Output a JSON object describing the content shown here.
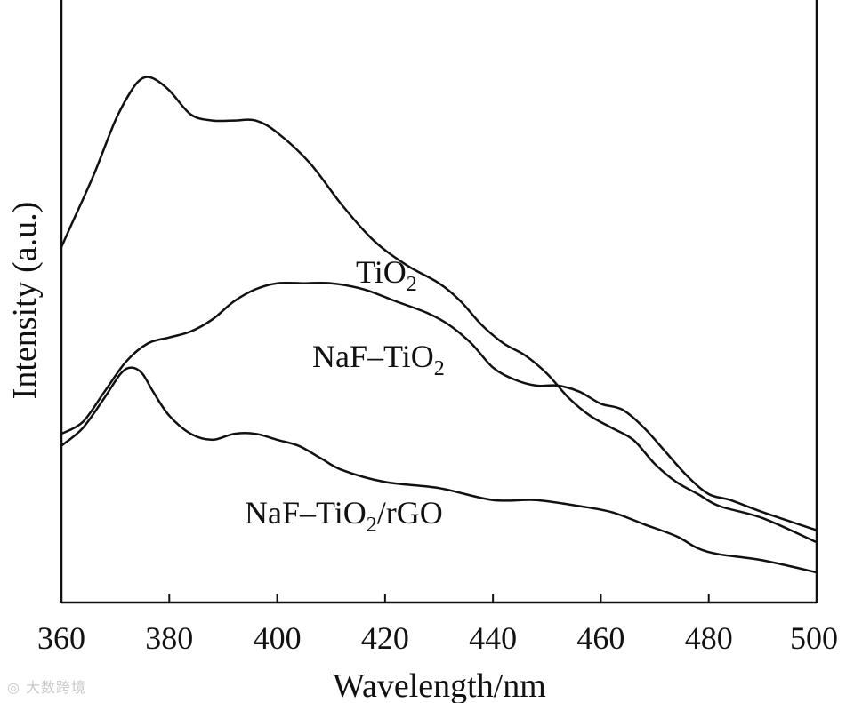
{
  "chart_data": {
    "type": "line",
    "title": "",
    "xlabel": "Wavelength/nm",
    "ylabel": "Intensity (a.u.)",
    "xlim": [
      360,
      500
    ],
    "ylim": [
      0,
      1
    ],
    "x_ticks": [
      "360",
      "380",
      "400",
      "420",
      "440",
      "460",
      "480",
      "500"
    ],
    "y_ticks": [],
    "series": [
      {
        "name": "TiO2",
        "label_main": "TiO",
        "label_sub": "2",
        "label_tail": "",
        "x": [
          360,
          362,
          366,
          370,
          373,
          375,
          377,
          380,
          384,
          388,
          392,
          396,
          400,
          406,
          412,
          418,
          424,
          430,
          434,
          438,
          442,
          446,
          450,
          454,
          458,
          462,
          466,
          470,
          474,
          478,
          482,
          490,
          500
        ],
        "y": [
          0.59,
          0.63,
          0.71,
          0.8,
          0.85,
          0.87,
          0.87,
          0.85,
          0.81,
          0.8,
          0.8,
          0.8,
          0.78,
          0.73,
          0.66,
          0.6,
          0.56,
          0.53,
          0.5,
          0.46,
          0.43,
          0.41,
          0.38,
          0.34,
          0.31,
          0.29,
          0.27,
          0.23,
          0.2,
          0.18,
          0.16,
          0.14,
          0.1
        ]
      },
      {
        "name": "NaF-TiO2",
        "label_main": "NaF–TiO",
        "label_sub": "2",
        "label_tail": "",
        "x": [
          360,
          364,
          368,
          372,
          376,
          380,
          384,
          388,
          392,
          396,
          400,
          405,
          410,
          416,
          422,
          428,
          432,
          436,
          440,
          444,
          448,
          452,
          456,
          460,
          464,
          468,
          472,
          476,
          480,
          484,
          490,
          500
        ],
        "y": [
          0.28,
          0.3,
          0.35,
          0.4,
          0.43,
          0.44,
          0.45,
          0.47,
          0.5,
          0.52,
          0.53,
          0.53,
          0.53,
          0.52,
          0.5,
          0.48,
          0.46,
          0.43,
          0.39,
          0.37,
          0.36,
          0.36,
          0.35,
          0.33,
          0.32,
          0.29,
          0.25,
          0.21,
          0.18,
          0.17,
          0.15,
          0.12
        ]
      },
      {
        "name": "NaF-TiO2/rGO",
        "label_main": "NaF–TiO",
        "label_sub": "2",
        "label_tail": "/rGO",
        "x": [
          360,
          364,
          368,
          371,
          373,
          375,
          377,
          380,
          384,
          388,
          392,
          396,
          400,
          404,
          408,
          412,
          420,
          430,
          440,
          448,
          456,
          462,
          468,
          474,
          478,
          482,
          490,
          500
        ],
        "y": [
          0.26,
          0.29,
          0.34,
          0.38,
          0.39,
          0.38,
          0.35,
          0.31,
          0.28,
          0.27,
          0.28,
          0.28,
          0.27,
          0.26,
          0.24,
          0.22,
          0.2,
          0.19,
          0.17,
          0.17,
          0.16,
          0.15,
          0.13,
          0.11,
          0.09,
          0.08,
          0.07,
          0.05
        ]
      }
    ],
    "annotations": [],
    "grid": false,
    "legend": "inline labels"
  },
  "watermark": "大数跨境"
}
